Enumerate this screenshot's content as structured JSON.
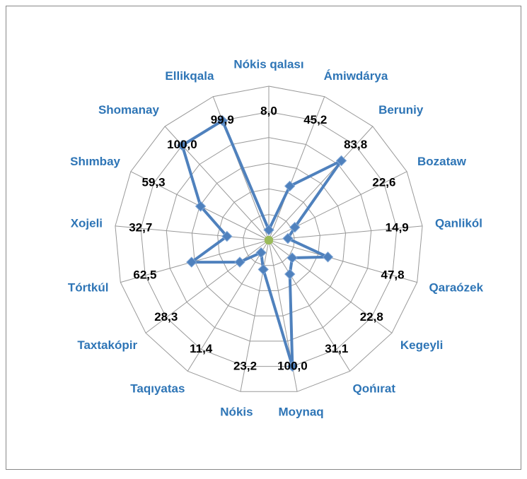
{
  "chart_data": {
    "type": "radar",
    "categories": [
      "Nókis qalası",
      "Ámiwdárya",
      "Beruniy",
      "Bozataw",
      "Qanlikól",
      "Qaraózek",
      "Kegeyli",
      "Qońırat",
      "Moynaq",
      "Nókis",
      "Taqıyatas",
      "Taxtakópir",
      "Tórtkúl",
      "Xojeli",
      "Shımbay",
      "Shomanay",
      "Ellikqala"
    ],
    "series": [
      {
        "color": "#4f81bd",
        "values": [
          8.0,
          45.2,
          83.8,
          22.6,
          14.9,
          47.8,
          22.8,
          31.1,
          100.0,
          23.2,
          11.4,
          28.3,
          62.5,
          32.7,
          59.3,
          100.0,
          99.9
        ],
        "value_labels": [
          "8,0",
          "45,2",
          "83,8",
          "22,6",
          "14,9",
          "47,8",
          "22,8",
          "31,1",
          "100,0",
          "23,2",
          "11,4",
          "28,3",
          "62,5",
          "32,7",
          "59,3",
          "100,0",
          "99,9"
        ]
      },
      {
        "color": "#9bbb59",
        "values": [
          0,
          0,
          0,
          0,
          0,
          0,
          0,
          0,
          0,
          0,
          0,
          0,
          0,
          0,
          0,
          0,
          0
        ]
      }
    ],
    "ylim": [
      0,
      120
    ],
    "yticks": [
      0,
      20,
      40,
      60,
      80,
      100,
      120
    ],
    "grid": true
  }
}
